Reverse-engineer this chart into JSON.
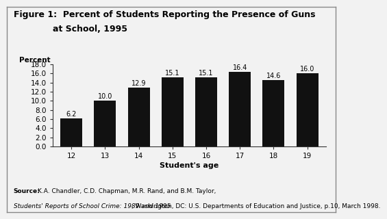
{
  "title_line1": "Figure 1:  Percent of Students Reporting the Presence of Guns",
  "title_line2": "at School, 1995",
  "ylabel": "Percent",
  "xlabel": "Student's age",
  "categories": [
    "12",
    "13",
    "14",
    "15",
    "16",
    "17",
    "18",
    "19"
  ],
  "values": [
    6.2,
    10.0,
    12.9,
    15.1,
    15.1,
    16.4,
    14.6,
    16.0
  ],
  "bar_color": "#111111",
  "ylim": [
    0,
    18.0
  ],
  "yticks": [
    0.0,
    2.0,
    4.0,
    6.0,
    8.0,
    10.0,
    12.0,
    14.0,
    16.0,
    18.0
  ],
  "source_bold": "Source:",
  "source_normal": " K.A. Chandler, C.D. Chapman, M.R. Rand, and B.M. Taylor, ",
  "source_italic": "Students' Reports of School Crime: 1989 and 1995",
  "source_end": ", Washington, DC: U.S. Departments of Education and Justice, p.10, March 1998.",
  "background_color": "#f2f2f2",
  "label_fontsize": 7.5,
  "tick_fontsize": 7.5,
  "bar_label_fontsize": 7.0,
  "title_fontsize": 9.0,
  "source_fontsize": 6.5
}
